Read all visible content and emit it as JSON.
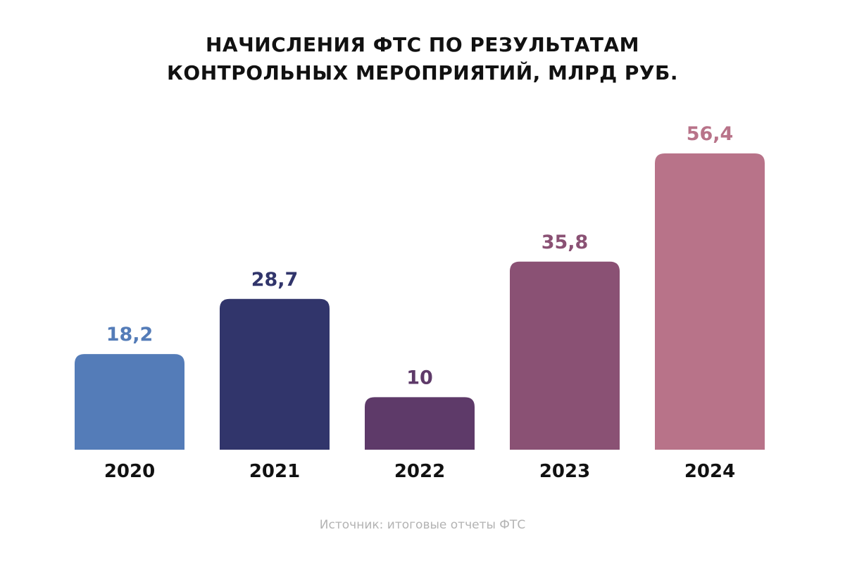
{
  "title": {
    "line1": "НАЧИСЛЕНИЯ ФТС ПО РЕЗУЛЬТАТАМ",
    "line2": "КОНТРОЛЬНЫХ МЕРОПРИЯТИЙ, МЛРД РУБ."
  },
  "source": "Источник: итоговые отчеты ФТС",
  "chart_data": {
    "type": "bar",
    "title": "НАЧИСЛЕНИЯ ФТС ПО РЕЗУЛЬТАТАМ КОНТРОЛЬНЫХ МЕРОПРИЯТИЙ, МЛРД РУБ.",
    "xlabel": "",
    "ylabel": "",
    "categories": [
      "2020",
      "2021",
      "2022",
      "2023",
      "2024"
    ],
    "values": [
      18.2,
      28.7,
      10,
      35.8,
      56.4
    ],
    "value_labels": [
      "18,2",
      "28,7",
      "10",
      "35,8",
      "56,4"
    ],
    "colors": [
      "#547cb8",
      "#31356b",
      "#5e3a69",
      "#8a5174",
      "#b87389"
    ],
    "ylim": [
      0,
      56.4
    ],
    "grid": false,
    "legend": "none"
  }
}
